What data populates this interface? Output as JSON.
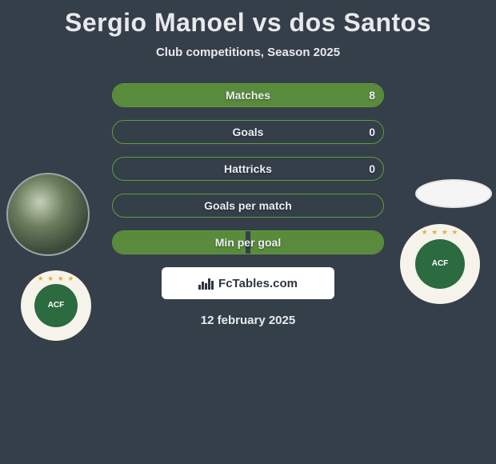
{
  "title": "Sergio Manoel vs dos Santos",
  "subtitle": "Club competitions, Season 2025",
  "date": "12 february 2025",
  "footer_brand": "FcTables.com",
  "colors": {
    "background": "#353f4a",
    "bar_border": "#5f9e3a",
    "bar_fill": "#5a8a3c",
    "text": "#e8e9eb",
    "badge_green": "#2c6a3f",
    "badge_cream": "#f6f3ea",
    "star": "#e3b23c"
  },
  "club_badge_text": "ACF",
  "stats": [
    {
      "label": "Matches",
      "left_value": "",
      "right_value": "8",
      "left_pct": 0,
      "right_pct": 100
    },
    {
      "label": "Goals",
      "left_value": "",
      "right_value": "0",
      "left_pct": 0,
      "right_pct": 0
    },
    {
      "label": "Hattricks",
      "left_value": "",
      "right_value": "0",
      "left_pct": 0,
      "right_pct": 0
    },
    {
      "label": "Goals per match",
      "left_value": "",
      "right_value": "",
      "left_pct": 0,
      "right_pct": 0
    },
    {
      "label": "Min per goal",
      "left_value": "",
      "right_value": "",
      "left_pct": 49,
      "right_pct": 49
    }
  ]
}
